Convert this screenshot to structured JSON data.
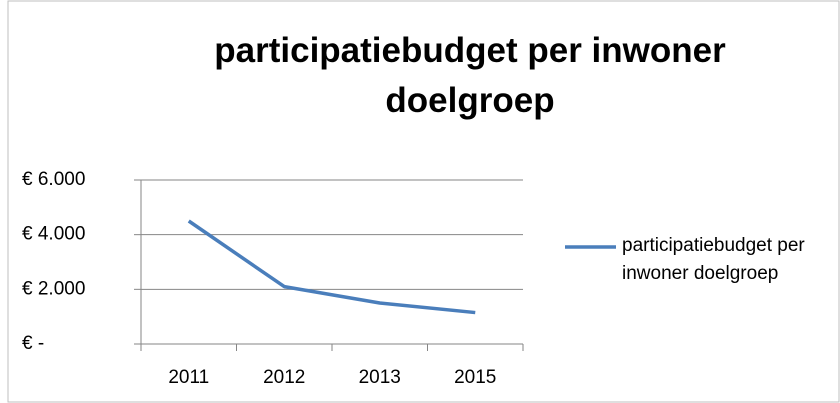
{
  "chart_data": {
    "type": "line",
    "title": "participatiebudget per inwoner doelgroep",
    "categories": [
      "2011",
      "2012",
      "2013",
      "2015"
    ],
    "series": [
      {
        "name": "participatiebudget per inwoner doelgroep",
        "color": "#4a7ebb",
        "values": [
          4500,
          2100,
          1500,
          1150
        ]
      }
    ],
    "ylim": [
      0,
      6000
    ],
    "yticks": [
      {
        "value": 0,
        "label": "€ -"
      },
      {
        "value": 2000,
        "label": "€ 2.000"
      },
      {
        "value": 4000,
        "label": "€ 4.000"
      },
      {
        "value": 6000,
        "label": "€ 6.000"
      }
    ],
    "grid": true,
    "legend": "right"
  }
}
